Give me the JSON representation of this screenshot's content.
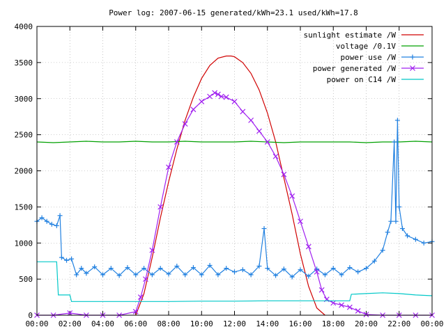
{
  "chart_data": {
    "type": "line",
    "title": "Power log: 2007-06-15 generated/kWh=23.1 used/kWh=17.8",
    "xlabel": "",
    "ylabel": "",
    "xlim": [
      0,
      24
    ],
    "ylim": [
      0,
      4000
    ],
    "x_ticks": [
      "00:00",
      "02:00",
      "04:00",
      "06:00",
      "08:00",
      "10:00",
      "12:00",
      "14:00",
      "16:00",
      "18:00",
      "20:00",
      "22:00",
      "00:00"
    ],
    "y_ticks": [
      "0",
      "500",
      "1000",
      "1500",
      "2000",
      "2500",
      "3000",
      "3500",
      "4000"
    ],
    "grid": true,
    "legend_position": "top-right",
    "series": [
      {
        "name": "sunlight estimate /W",
        "color": "#d00000",
        "marker": "none",
        "x": [
          6.0,
          6.5,
          7.0,
          7.5,
          8.0,
          8.5,
          9.0,
          9.5,
          10.0,
          10.5,
          11.0,
          11.5,
          11.8,
          12.0,
          12.5,
          13.0,
          13.5,
          14.0,
          14.5,
          15.0,
          15.5,
          16.0,
          16.5,
          17.0,
          17.5
        ],
        "y": [
          0,
          300,
          800,
          1350,
          1850,
          2300,
          2700,
          3020,
          3280,
          3460,
          3560,
          3590,
          3590,
          3580,
          3500,
          3350,
          3120,
          2800,
          2400,
          1900,
          1400,
          850,
          400,
          100,
          0
        ]
      },
      {
        "name": "voltage /0.1V",
        "color": "#00a000",
        "marker": "none",
        "x": [
          0,
          1,
          2,
          3,
          4,
          5,
          6,
          7,
          8,
          9,
          10,
          11,
          12,
          13,
          14,
          15,
          16,
          17,
          18,
          19,
          20,
          21,
          22,
          23,
          24
        ],
        "y": [
          2400,
          2390,
          2400,
          2410,
          2400,
          2400,
          2410,
          2400,
          2400,
          2410,
          2400,
          2400,
          2400,
          2410,
          2400,
          2390,
          2400,
          2400,
          2400,
          2400,
          2390,
          2400,
          2400,
          2410,
          2400
        ]
      },
      {
        "name": "power use /W",
        "color": "#2080e0",
        "marker": "+",
        "x": [
          0.0,
          0.3,
          0.6,
          0.9,
          1.2,
          1.4,
          1.5,
          1.8,
          2.1,
          2.4,
          2.7,
          3.0,
          3.5,
          4.0,
          4.5,
          5.0,
          5.5,
          6.0,
          6.5,
          7.0,
          7.5,
          8.0,
          8.5,
          9.0,
          9.5,
          10.0,
          10.5,
          11.0,
          11.5,
          12.0,
          12.5,
          13.0,
          13.5,
          13.8,
          14.0,
          14.5,
          15.0,
          15.5,
          16.0,
          16.5,
          17.0,
          17.5,
          18.0,
          18.5,
          19.0,
          19.5,
          20.0,
          20.5,
          21.0,
          21.3,
          21.5,
          21.7,
          21.8,
          21.9,
          22.0,
          22.2,
          22.5,
          23.0,
          23.5,
          24.0
        ],
        "y": [
          1300,
          1350,
          1300,
          1260,
          1240,
          1380,
          800,
          760,
          780,
          560,
          650,
          580,
          670,
          560,
          650,
          550,
          660,
          560,
          650,
          560,
          650,
          570,
          680,
          560,
          660,
          560,
          690,
          560,
          650,
          600,
          630,
          560,
          680,
          1200,
          650,
          550,
          640,
          530,
          630,
          540,
          640,
          560,
          650,
          560,
          660,
          600,
          650,
          750,
          900,
          1150,
          1300,
          2400,
          1300,
          2700,
          1500,
          1200,
          1100,
          1050,
          1000,
          1020
        ]
      },
      {
        "name": "power generated /W",
        "color": "#a020f0",
        "marker": "x",
        "x": [
          0,
          1,
          2,
          3,
          4,
          5,
          6.0,
          6.3,
          6.6,
          7.0,
          7.5,
          8.0,
          8.5,
          9.0,
          9.5,
          10.0,
          10.5,
          10.8,
          11.0,
          11.2,
          11.5,
          12.0,
          12.5,
          13.0,
          13.5,
          14.0,
          14.5,
          15.0,
          15.5,
          16.0,
          16.5,
          17.0,
          17.3,
          17.6,
          18.0,
          18.5,
          19.0,
          19.5,
          20.0,
          21,
          22,
          23,
          24
        ],
        "y": [
          0,
          0,
          30,
          0,
          0,
          0,
          50,
          250,
          500,
          900,
          1500,
          2050,
          2400,
          2650,
          2850,
          2960,
          3030,
          3080,
          3060,
          3030,
          3020,
          2960,
          2820,
          2700,
          2550,
          2400,
          2200,
          1950,
          1650,
          1300,
          950,
          600,
          350,
          220,
          170,
          140,
          110,
          60,
          10,
          0,
          0,
          0,
          0
        ]
      },
      {
        "name": "power on C14 /W",
        "color": "#00c8c8",
        "marker": "none",
        "x": [
          0,
          1.2,
          1.3,
          2.0,
          2.1,
          4,
          6,
          8,
          10,
          12,
          14,
          16,
          18,
          19.0,
          19.1,
          20,
          21,
          22,
          23,
          24
        ],
        "y": [
          740,
          740,
          280,
          280,
          190,
          190,
          190,
          190,
          195,
          195,
          200,
          200,
          200,
          200,
          290,
          300,
          310,
          300,
          280,
          270
        ]
      }
    ]
  }
}
